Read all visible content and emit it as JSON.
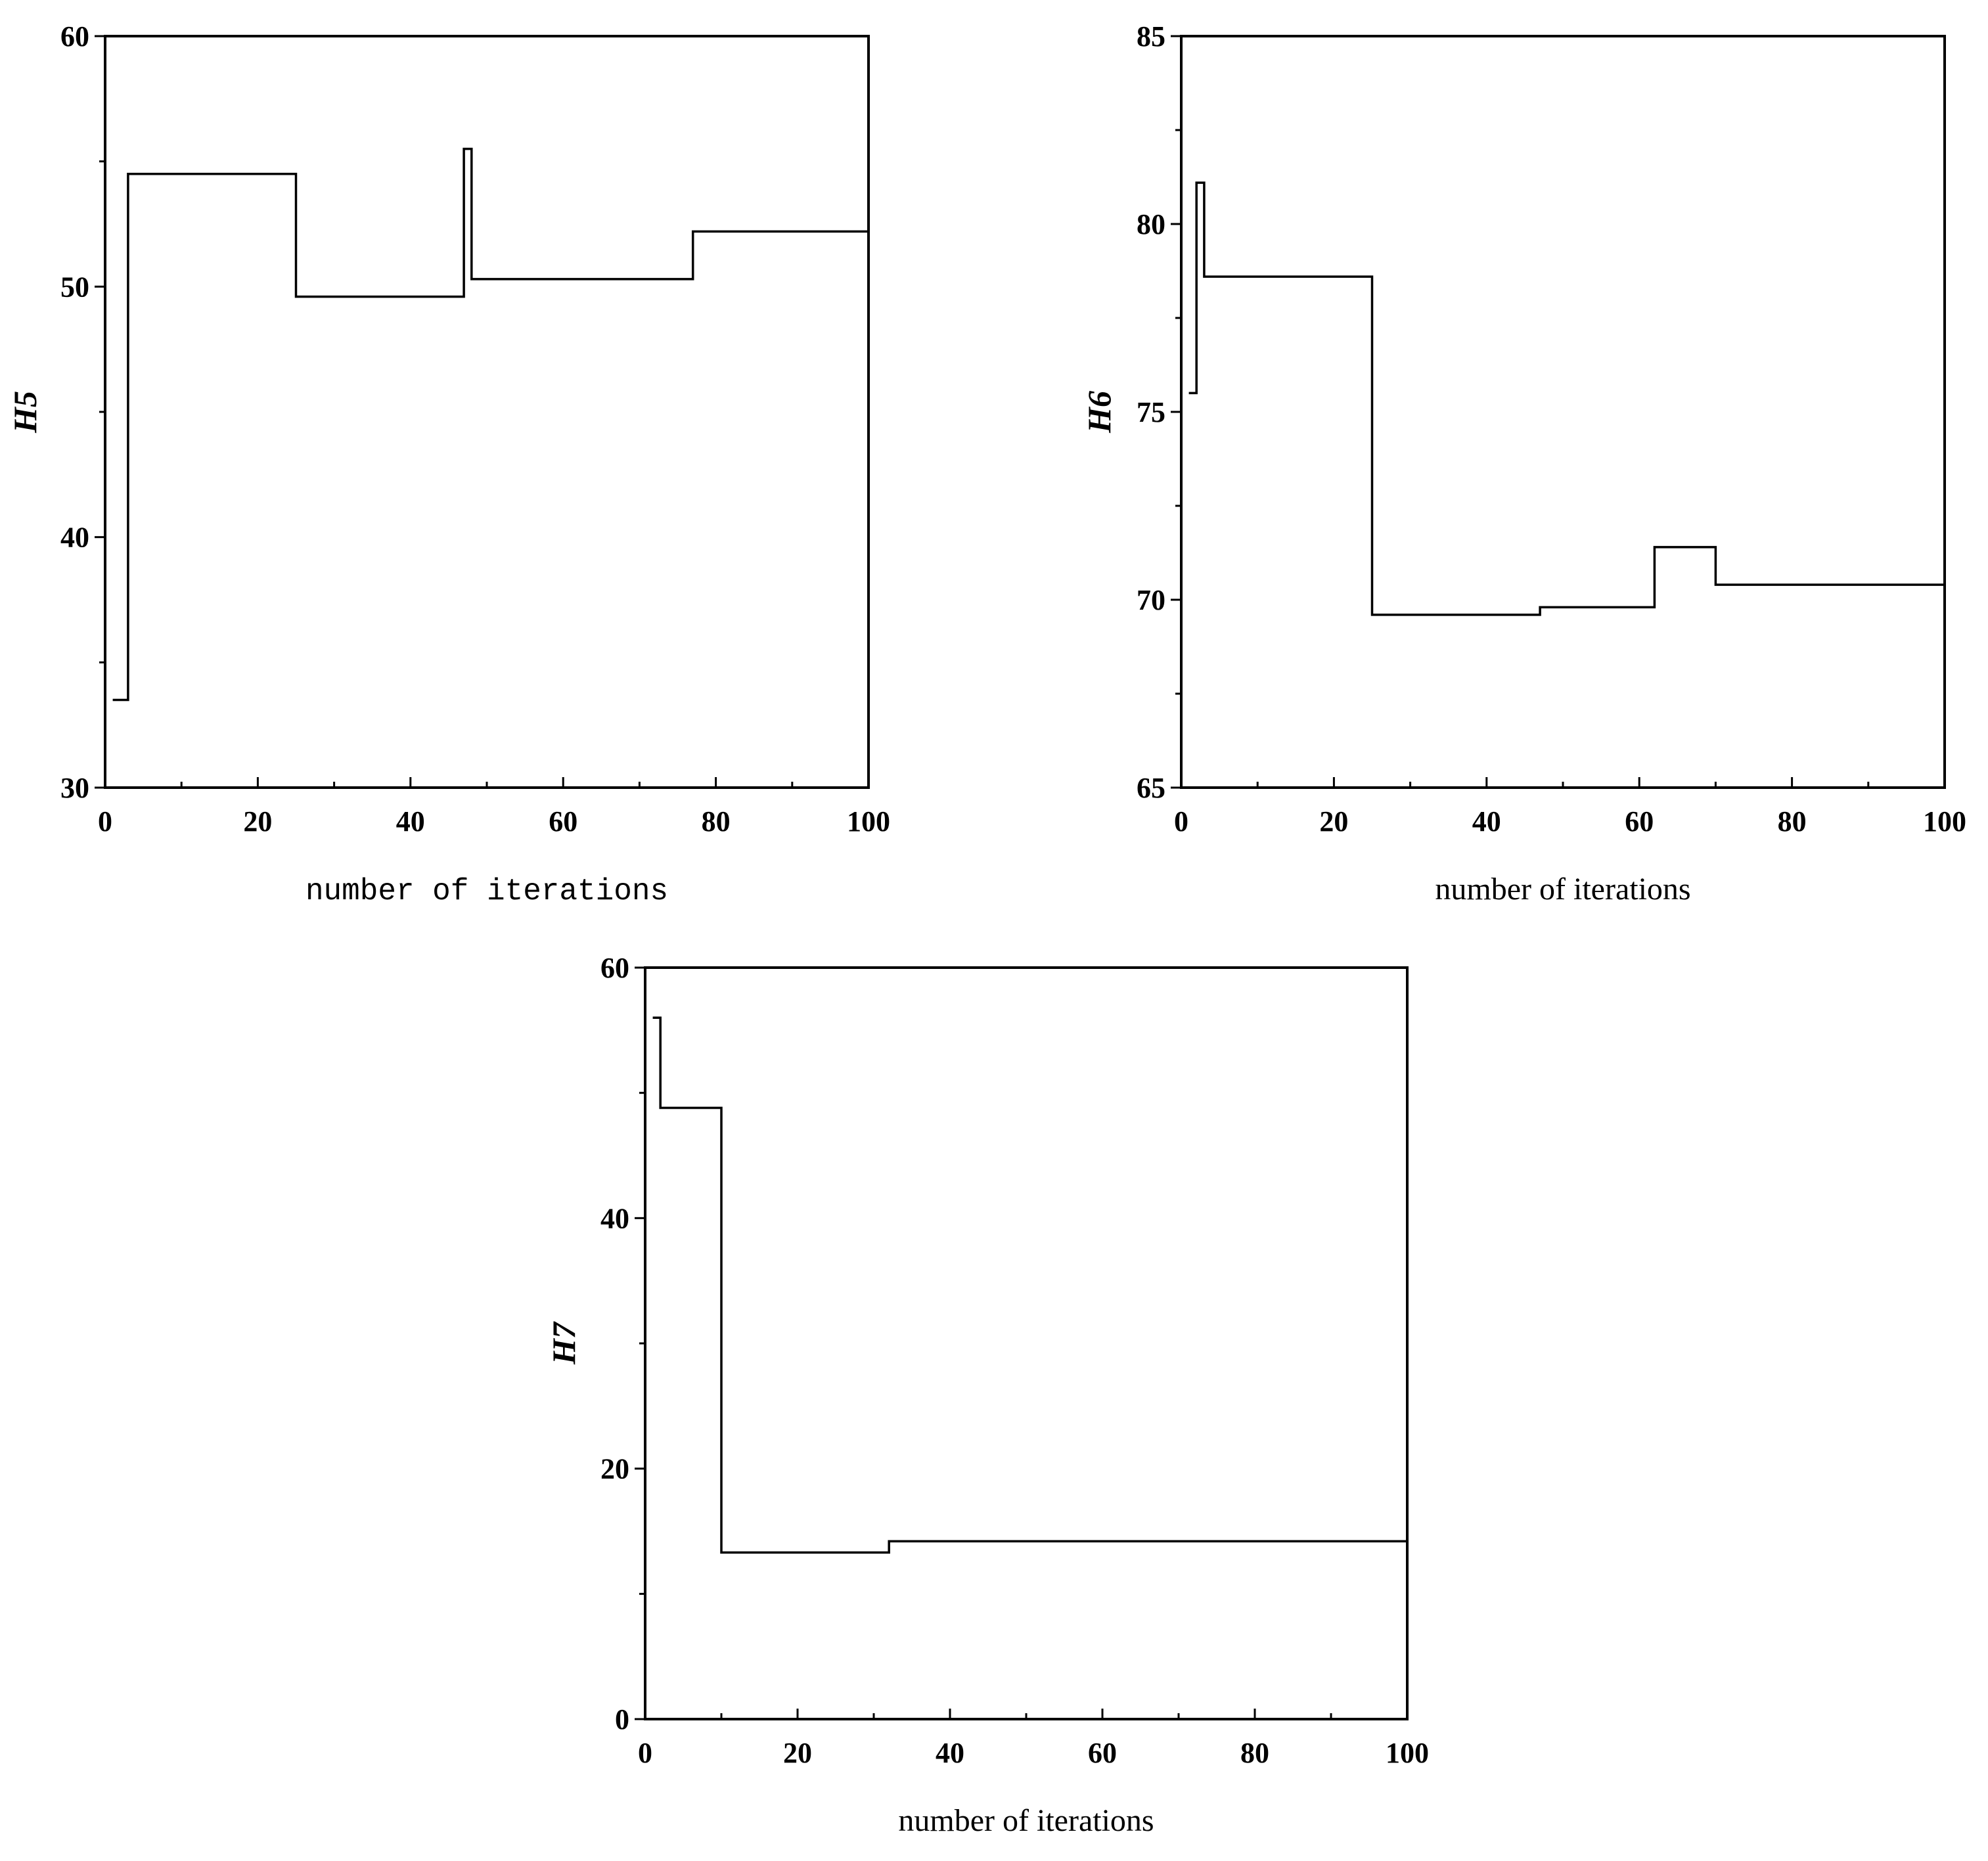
{
  "chart_data": [
    {
      "type": "line",
      "step": true,
      "ylabel": "H5",
      "xlabel": "number of iterations",
      "xlim": [
        0,
        100
      ],
      "ylim": [
        30,
        60
      ],
      "x_ticks": [
        0,
        20,
        40,
        60,
        80,
        100
      ],
      "y_ticks": [
        30,
        40,
        50,
        60
      ],
      "grid": false,
      "series": [
        {
          "x": [
            1,
            3,
            3,
            25,
            25,
            47,
            47,
            48,
            48,
            77,
            77,
            100
          ],
          "values": [
            33.5,
            33.5,
            54.5,
            54.5,
            49.6,
            49.6,
            55.5,
            55.5,
            50.3,
            50.3,
            52.2,
            52.2
          ]
        }
      ]
    },
    {
      "type": "line",
      "step": true,
      "ylabel": "H6",
      "xlabel": "number of iterations",
      "xlim": [
        0,
        100
      ],
      "ylim": [
        65,
        85
      ],
      "x_ticks": [
        0,
        20,
        40,
        60,
        80,
        100
      ],
      "y_ticks": [
        65,
        70,
        75,
        80,
        85
      ],
      "grid": false,
      "series": [
        {
          "x": [
            1,
            2,
            2,
            3,
            3,
            25,
            25,
            47,
            47,
            62,
            62,
            70,
            70,
            100
          ],
          "values": [
            75.5,
            75.5,
            81.1,
            81.1,
            78.6,
            78.6,
            69.6,
            69.6,
            69.8,
            69.8,
            71.4,
            71.4,
            70.4,
            70.4
          ]
        }
      ]
    },
    {
      "type": "line",
      "step": true,
      "ylabel": "H7",
      "xlabel": "number of iterations",
      "xlim": [
        0,
        100
      ],
      "ylim": [
        0,
        60
      ],
      "x_ticks": [
        0,
        20,
        40,
        60,
        80,
        100
      ],
      "y_ticks": [
        0,
        20,
        40,
        60
      ],
      "grid": false,
      "series": [
        {
          "x": [
            1,
            2,
            2,
            10,
            10,
            32,
            32,
            100
          ],
          "values": [
            56,
            56,
            48.8,
            48.8,
            13.3,
            13.3,
            14.2,
            14.2
          ]
        }
      ]
    }
  ]
}
